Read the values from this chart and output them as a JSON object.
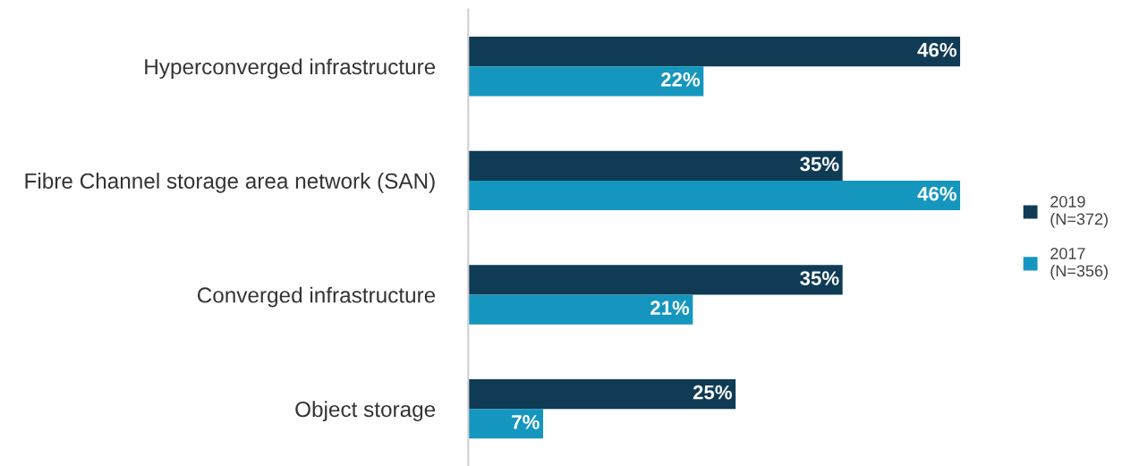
{
  "chart_data": {
    "type": "bar",
    "orientation": "horizontal",
    "categories": [
      "Hyperconverged infrastructure",
      "Fibre Channel storage area network (SAN)",
      "Converged infrastructure",
      "Object storage"
    ],
    "series": [
      {
        "name": "2019\n(N=372)",
        "color": "#0f3b54",
        "values": [
          46,
          35,
          35,
          25
        ],
        "value_labels": [
          "46%",
          "35%",
          "35%",
          "25%"
        ]
      },
      {
        "name": "2017\n(N=356)",
        "color": "#1596be",
        "values": [
          22,
          46,
          21,
          7
        ],
        "value_labels": [
          "22%",
          "46%",
          "21%",
          "7%"
        ]
      }
    ],
    "legend": "right",
    "grid": false
  }
}
